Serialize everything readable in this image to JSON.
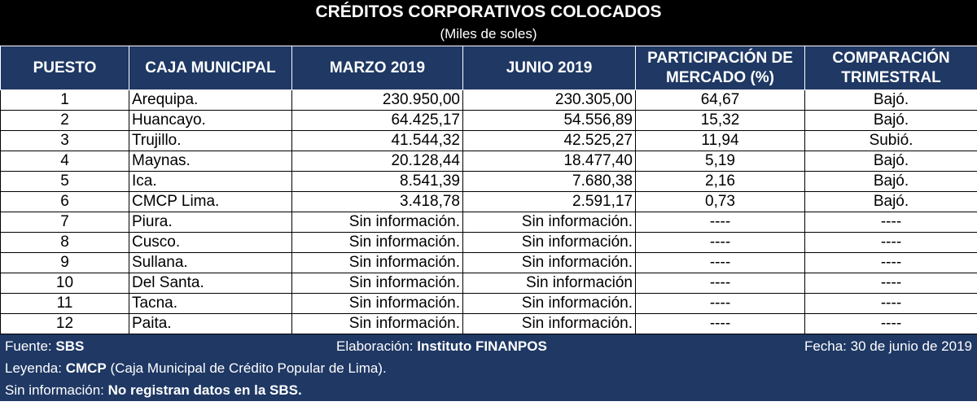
{
  "title": "CRÉDITOS CORPORATIVOS COLOCADOS",
  "subtitle": "(Miles de soles)",
  "headers": {
    "puesto": "PUESTO",
    "caja": "CAJA MUNICIPAL",
    "marzo": "MARZO 2019",
    "junio": "JUNIO 2019",
    "participacion": "PARTICIPACIÓN DE MERCADO (%)",
    "comparacion": "COMPARACIÓN TRIMESTRAL"
  },
  "rows": [
    {
      "puesto": "1",
      "caja": "Arequipa.",
      "marzo": "230.950,00",
      "junio": "230.305,00",
      "participacion": "64,67",
      "comparacion": "Bajó."
    },
    {
      "puesto": "2",
      "caja": "Huancayo.",
      "marzo": "64.425,17",
      "junio": "54.556,89",
      "participacion": "15,32",
      "comparacion": "Bajó."
    },
    {
      "puesto": "3",
      "caja": "Trujillo.",
      "marzo": "41.544,32",
      "junio": "42.525,27",
      "participacion": "11,94",
      "comparacion": "Subió."
    },
    {
      "puesto": "4",
      "caja": "Maynas.",
      "marzo": "20.128,44",
      "junio": "18.477,40",
      "participacion": "5,19",
      "comparacion": "Bajó."
    },
    {
      "puesto": "5",
      "caja": "Ica.",
      "marzo": "8.541,39",
      "junio": "7.680,38",
      "participacion": "2,16",
      "comparacion": "Bajó."
    },
    {
      "puesto": "6",
      "caja": "CMCP Lima.",
      "marzo": "3.418,78",
      "junio": "2.591,17",
      "participacion": "0,73",
      "comparacion": "Bajó."
    },
    {
      "puesto": "7",
      "caja": "Piura.",
      "marzo": "Sin información.",
      "junio": "Sin información.",
      "participacion": "----",
      "comparacion": "----"
    },
    {
      "puesto": "8",
      "caja": "Cusco.",
      "marzo": "Sin información.",
      "junio": "Sin información.",
      "participacion": "----",
      "comparacion": "----"
    },
    {
      "puesto": "9",
      "caja": "Sullana.",
      "marzo": "Sin información.",
      "junio": "Sin información.",
      "participacion": "----",
      "comparacion": "----"
    },
    {
      "puesto": "10",
      "caja": "Del Santa.",
      "marzo": "Sin información.",
      "junio": "Sin información",
      "participacion": "----",
      "comparacion": "----"
    },
    {
      "puesto": "11",
      "caja": "Tacna.",
      "marzo": "Sin información.",
      "junio": "Sin información.",
      "participacion": "----",
      "comparacion": "----"
    },
    {
      "puesto": "12",
      "caja": "Paita.",
      "marzo": "Sin información.",
      "junio": "Sin información.",
      "participacion": "----",
      "comparacion": "----"
    }
  ],
  "footer": {
    "fuente_label": "Fuente: ",
    "fuente_value": "SBS",
    "elaboracion_label": "Elaboración: ",
    "elaboracion_value": "Instituto FINANPOS",
    "fecha": "Fecha: 30 de junio de 2019",
    "leyenda_label": "Leyenda: ",
    "leyenda_value": "CMCP",
    "leyenda_desc": " (Caja Municipal de Crédito Popular de Lima).",
    "sininfo_label": "Sin información: ",
    "sininfo_value": "No registran datos en la SBS."
  },
  "colors": {
    "header_bg": "#1f3864",
    "title_bg": "#000000"
  }
}
